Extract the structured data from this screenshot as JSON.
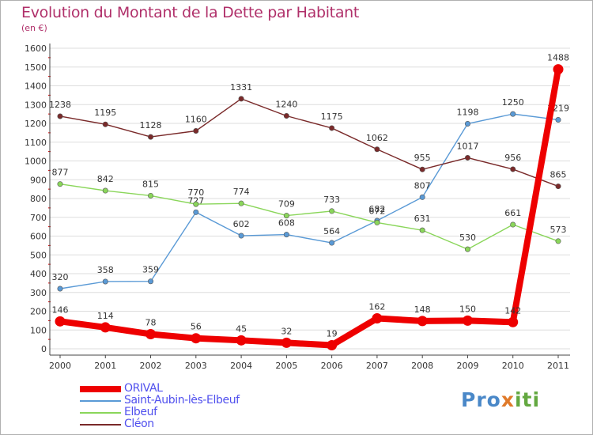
{
  "title": "Evolution du Montant de la Dette par Habitant",
  "subtitle": "(en €)",
  "logo": {
    "part1": "Pro",
    "part2": "x",
    "part3": "iti"
  },
  "colors": {
    "title": "#b0306a",
    "legend_text": "#5050ee",
    "grid": "#dddddd",
    "axis_red_ticks": "#cc0000"
  },
  "chart_data": {
    "type": "line",
    "title": "Evolution du Montant de la Dette par Habitant",
    "subtitle": "(en €)",
    "xlabel": "",
    "ylabel": "",
    "x": [
      "2000",
      "2001",
      "2002",
      "2003",
      "2004",
      "2005",
      "2006",
      "2007",
      "2008",
      "2009",
      "2010",
      "2011"
    ],
    "ylim": [
      0,
      1600
    ],
    "yticks": [
      0,
      100,
      200,
      300,
      400,
      500,
      600,
      700,
      800,
      900,
      1000,
      1100,
      1200,
      1300,
      1400,
      1500,
      1600
    ],
    "grid": true,
    "legend_position": "bottom-left",
    "series": [
      {
        "name": "ORIVAL",
        "color": "#ee0000",
        "emphasis": true,
        "values": [
          146,
          114,
          78,
          56,
          45,
          32,
          19,
          162,
          148,
          150,
          142,
          1488
        ]
      },
      {
        "name": "Saint-Aubin-lès-Elbeuf",
        "color": "#5a9ad6",
        "emphasis": false,
        "values": [
          320,
          358,
          359,
          727,
          602,
          608,
          564,
          682,
          807,
          1198,
          1250,
          1219
        ]
      },
      {
        "name": "Elbeuf",
        "color": "#8ad65a",
        "emphasis": false,
        "values": [
          877,
          842,
          815,
          770,
          774,
          709,
          733,
          672,
          631,
          530,
          661,
          573
        ]
      },
      {
        "name": "Cléon",
        "color": "#7a2a2a",
        "emphasis": false,
        "values": [
          1238,
          1195,
          1128,
          1160,
          1331,
          1240,
          1175,
          1062,
          955,
          1017,
          956,
          865
        ]
      }
    ]
  }
}
